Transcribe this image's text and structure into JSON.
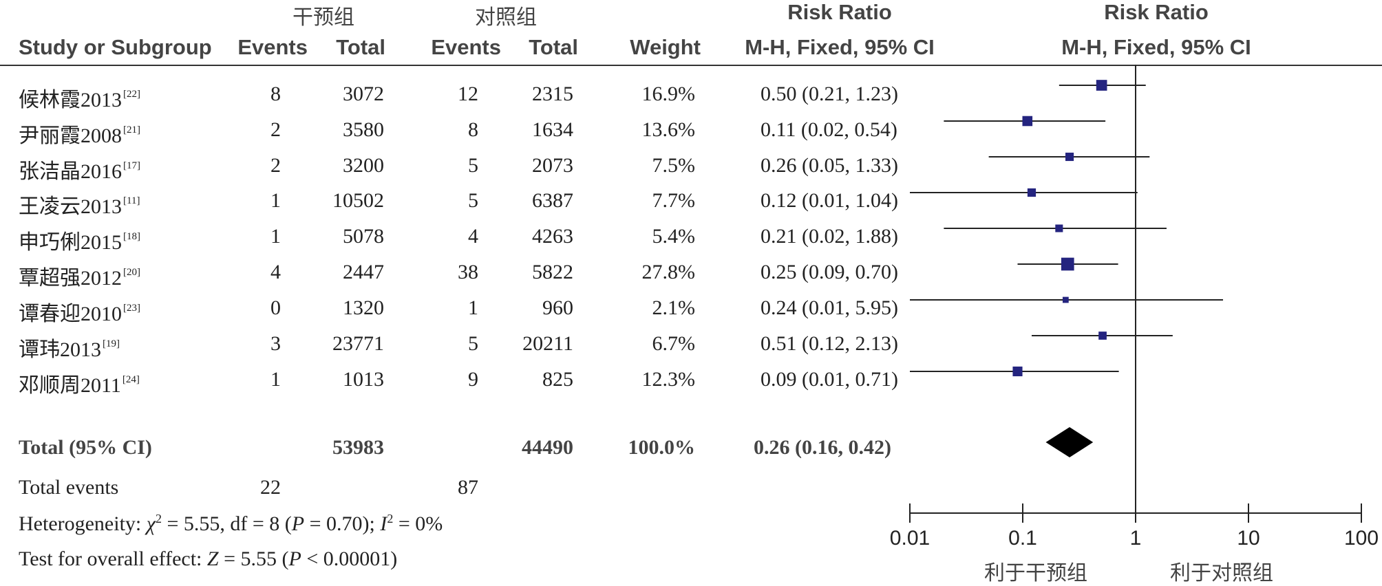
{
  "header": {
    "group1_name": "干预组",
    "group2_name": "对照组",
    "risk_ratio_col": "Risk Ratio",
    "risk_ratio_plot": "Risk Ratio",
    "study_col": "Study or Subgroup",
    "events1": "Events",
    "total1": "Total",
    "events2": "Events",
    "total2": "Total",
    "weight": "Weight",
    "method_col": "M-H, Fixed, 95% CI",
    "method_plot": "M-H, Fixed, 95% CI"
  },
  "studies": [
    {
      "name": "候林霞2013",
      "ref": "[22]",
      "e1": "8",
      "t1": "3072",
      "e2": "12",
      "t2": "2315",
      "weight": "16.9%",
      "ci_text": "0.50 (0.21, 1.23)"
    },
    {
      "name": "尹丽霞2008",
      "ref": "[21]",
      "e1": "2",
      "t1": "3580",
      "e2": "8",
      "t2": "1634",
      "weight": "13.6%",
      "ci_text": "0.11 (0.02, 0.54)"
    },
    {
      "name": "张洁晶2016",
      "ref": "[17]",
      "e1": "2",
      "t1": "3200",
      "e2": "5",
      "t2": "2073",
      "weight": "7.5%",
      "ci_text": "0.26 (0.05, 1.33)"
    },
    {
      "name": "王凌云2013",
      "ref": "[11]",
      "e1": "1",
      "t1": "10502",
      "e2": "5",
      "t2": "6387",
      "weight": "7.7%",
      "ci_text": "0.12 (0.01, 1.04)"
    },
    {
      "name": "申巧俐2015",
      "ref": "[18]",
      "e1": "1",
      "t1": "5078",
      "e2": "4",
      "t2": "4263",
      "weight": "5.4%",
      "ci_text": "0.21 (0.02, 1.88)"
    },
    {
      "name": "覃超强2012",
      "ref": "[20]",
      "e1": "4",
      "t1": "2447",
      "e2": "38",
      "t2": "5822",
      "weight": "27.8%",
      "ci_text": "0.25 (0.09, 0.70)"
    },
    {
      "name": "谭春迎2010",
      "ref": "[23]",
      "e1": "0",
      "t1": "1320",
      "e2": "1",
      "t2": "960",
      "weight": "2.1%",
      "ci_text": "0.24 (0.01, 5.95)"
    },
    {
      "name": "谭玮2013",
      "ref": "[19]",
      "e1": "3",
      "t1": "23771",
      "e2": "5",
      "t2": "20211",
      "weight": "6.7%",
      "ci_text": "0.51 (0.12, 2.13)"
    },
    {
      "name": "邓顺周2011",
      "ref": "[24]",
      "e1": "1",
      "t1": "1013",
      "e2": "9",
      "t2": "825",
      "weight": "12.3%",
      "ci_text": "0.09 (0.01, 0.71)"
    }
  ],
  "total": {
    "label": "Total (95% CI)",
    "t1": "53983",
    "t2": "44490",
    "weight": "100.0%",
    "ci_text": "0.26 (0.16, 0.42)"
  },
  "total_events": {
    "label": "Total events",
    "e1": "22",
    "e2": "87"
  },
  "heterogeneity": {
    "prefix": "Heterogeneity: ",
    "chi_sym": "χ",
    "chi_sup": "2",
    "mid": " = 5.55, df = 8 (",
    "p_sym": "P",
    "p_val": " = 0.70); ",
    "i_sym": "I",
    "i_sup": "2",
    "i_val": " = 0%"
  },
  "overall_effect": {
    "prefix": "Test for overall effect: ",
    "z_sym": "Z",
    "z_val": " = 5.55 (",
    "p_sym": "P",
    "p_val": " < 0.00001)"
  },
  "favours": {
    "left": "利于干预组",
    "right": "利于对照组"
  },
  "colors": {
    "marker": "#24247f",
    "line": "#222222",
    "diamond": "#000000"
  },
  "chart_data": {
    "type": "forest",
    "scale": "log",
    "xlim": [
      0.01,
      100
    ],
    "ticks": [
      0.01,
      0.1,
      1,
      10,
      100
    ],
    "tick_labels": [
      "0.01",
      "0.1",
      "1",
      "10",
      "100"
    ],
    "reference_line": 1,
    "points": [
      {
        "rr": 0.5,
        "lo": 0.21,
        "hi": 1.23,
        "weight": 16.9
      },
      {
        "rr": 0.11,
        "lo": 0.02,
        "hi": 0.54,
        "weight": 13.6
      },
      {
        "rr": 0.26,
        "lo": 0.05,
        "hi": 1.33,
        "weight": 7.5
      },
      {
        "rr": 0.12,
        "lo": 0.01,
        "hi": 1.04,
        "weight": 7.7
      },
      {
        "rr": 0.21,
        "lo": 0.02,
        "hi": 1.88,
        "weight": 5.4
      },
      {
        "rr": 0.25,
        "lo": 0.09,
        "hi": 0.7,
        "weight": 27.8
      },
      {
        "rr": 0.24,
        "lo": 0.01,
        "hi": 5.95,
        "weight": 2.1
      },
      {
        "rr": 0.51,
        "lo": 0.12,
        "hi": 2.13,
        "weight": 6.7
      },
      {
        "rr": 0.09,
        "lo": 0.01,
        "hi": 0.71,
        "weight": 12.3
      }
    ],
    "pooled": {
      "rr": 0.26,
      "lo": 0.16,
      "hi": 0.42
    }
  }
}
